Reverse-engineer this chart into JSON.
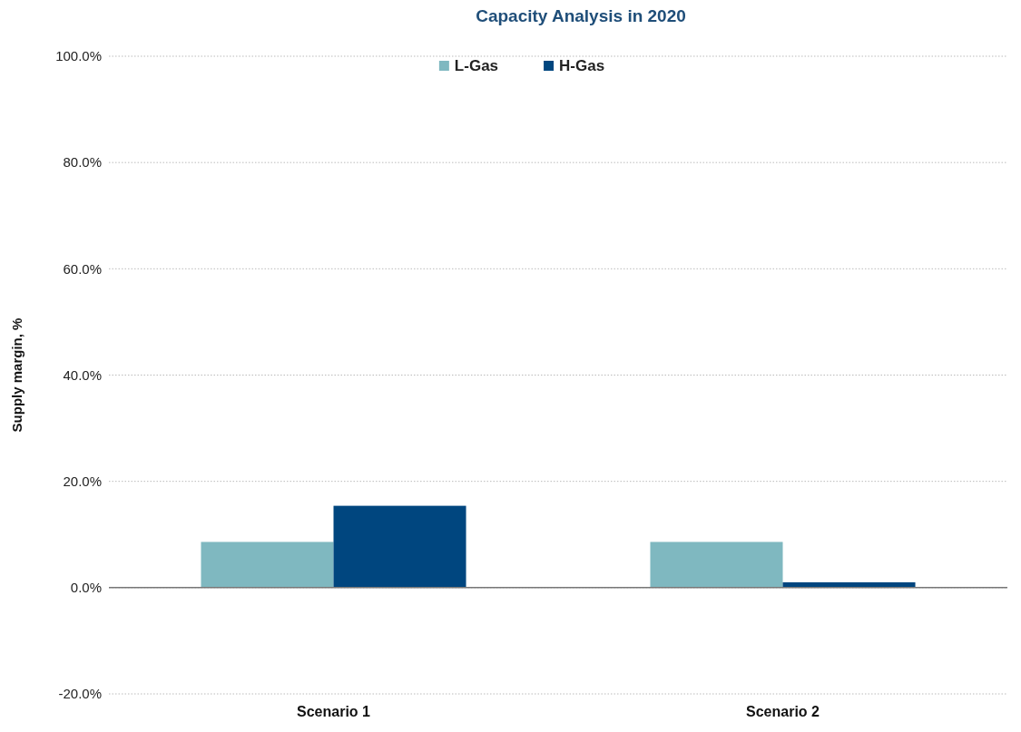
{
  "chart_data": {
    "type": "bar",
    "title": "Capacity Analysis in 2020",
    "ylabel": "Supply margin, %",
    "categories": [
      "Scenario 1",
      "Scenario 2"
    ],
    "series": [
      {
        "name": "L-Gas",
        "color": "#7fb8c0",
        "values": [
          8.6,
          8.6
        ]
      },
      {
        "name": "H-Gas",
        "color": "#00467f",
        "values": [
          15.4,
          1.0
        ]
      }
    ],
    "ylim": [
      -20,
      100
    ],
    "yticks": [
      {
        "value": -20,
        "label": "-20.0%"
      },
      {
        "value": 0,
        "label": "0.0%"
      },
      {
        "value": 20,
        "label": "20.0%"
      },
      {
        "value": 40,
        "label": "40.0%"
      },
      {
        "value": 60,
        "label": "60.0%"
      },
      {
        "value": 80,
        "label": "80.0%"
      },
      {
        "value": 100,
        "label": "100.0%"
      }
    ],
    "grid": "y",
    "legend": "top"
  }
}
